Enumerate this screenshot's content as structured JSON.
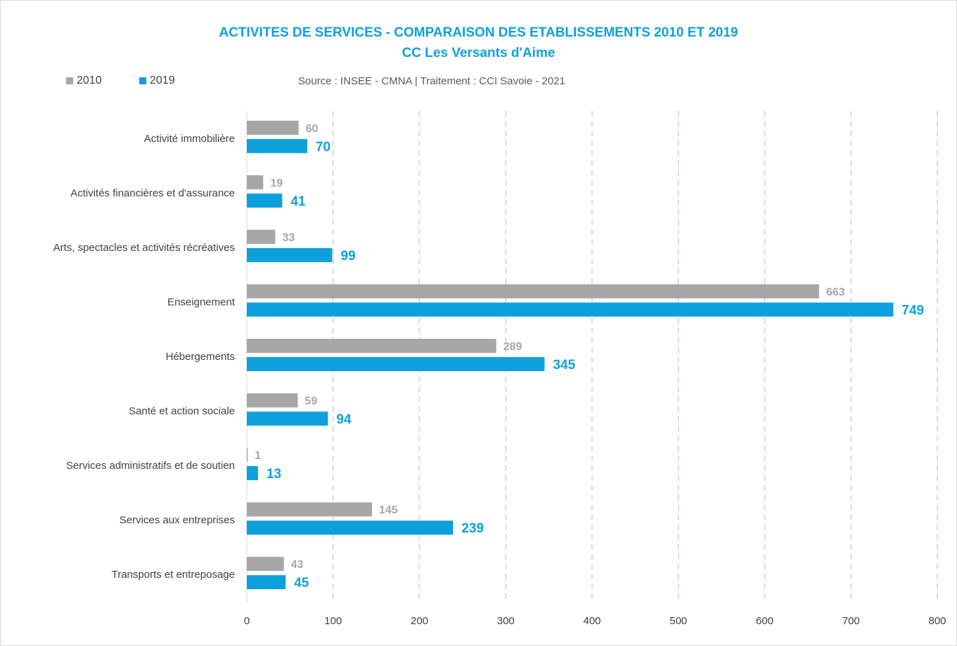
{
  "colors": {
    "series2010": "#a6a6a6",
    "series2019": "#0ea0dc",
    "grid": "#c9cbe8",
    "axis": "#d9d9d9"
  },
  "legend": {
    "label_2010": "2010",
    "label_2019": "2019"
  },
  "source": "Source : INSEE - CMNA  |  Traitement : CCI Savoie - 2021",
  "chart_data": {
    "type": "bar",
    "orientation": "horizontal",
    "title": "ACTIVITES DE SERVICES - COMPARAISON DES ETABLISSEMENTS 2010 ET 2019",
    "subtitle": "CC Les Versants d'Aime",
    "categories": [
      "Activité immobilière",
      "Activités financières et d'assurance",
      "Arts, spectacles et activités récréatives",
      "Enseignement",
      "Hébergements",
      "Santé et action sociale",
      "Services administratifs et de soutien",
      "Services aux entreprises",
      "Transports et entreposage"
    ],
    "series": [
      {
        "name": "2010",
        "values": [
          60,
          19,
          33,
          663,
          289,
          59,
          1,
          145,
          43
        ]
      },
      {
        "name": "2019",
        "values": [
          70,
          41,
          99,
          749,
          345,
          94,
          13,
          239,
          45
        ]
      }
    ],
    "xlim": [
      0,
      800
    ],
    "xticks": [
      0,
      100,
      200,
      300,
      400,
      500,
      600,
      700,
      800
    ],
    "grid": true,
    "legend_position": "top-left"
  }
}
